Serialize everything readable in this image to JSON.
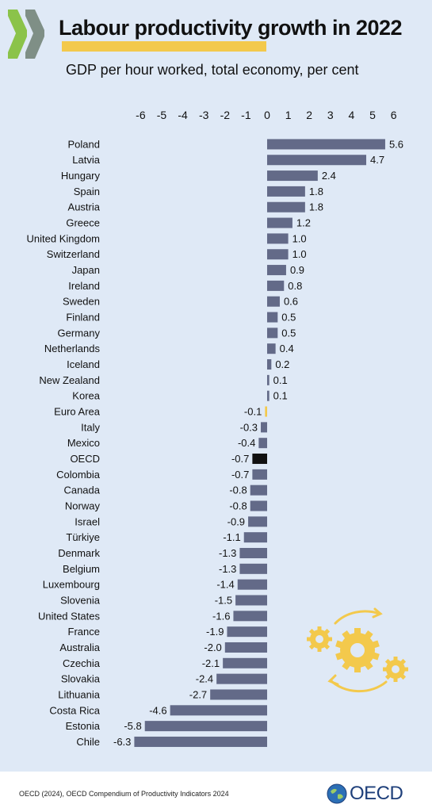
{
  "header": {
    "title": "Labour productivity growth in 2022",
    "subtitle": "GDP per hour worked, total economy, per cent"
  },
  "chart_data": {
    "type": "bar",
    "orientation": "horizontal",
    "title": "Labour productivity growth in 2022",
    "subtitle": "GDP per hour worked, total economy, per cent",
    "xlim": [
      -6,
      6
    ],
    "xticks": [
      -6,
      -5,
      -4,
      -3,
      -2,
      -1,
      0,
      1,
      2,
      3,
      4,
      5,
      6
    ],
    "axis_position": "top",
    "grid": false,
    "legend": "none",
    "categories": [
      "Poland",
      "Latvia",
      "Hungary",
      "Spain",
      "Austria",
      "Greece",
      "United Kingdom",
      "Switzerland",
      "Japan",
      "Ireland",
      "Sweden",
      "Finland",
      "Germany",
      "Netherlands",
      "Iceland",
      "New Zealand",
      "Korea",
      "Euro Area",
      "Italy",
      "Mexico",
      "OECD",
      "Colombia",
      "Canada",
      "Norway",
      "Israel",
      "Türkiye",
      "Denmark",
      "Belgium",
      "Luxembourg",
      "Slovenia",
      "United States",
      "France",
      "Australia",
      "Czechia",
      "Slovakia",
      "Lithuania",
      "Costa Rica",
      "Estonia",
      "Chile"
    ],
    "values": [
      5.6,
      4.7,
      2.4,
      1.8,
      1.8,
      1.2,
      1.0,
      1.0,
      0.9,
      0.8,
      0.6,
      0.5,
      0.5,
      0.4,
      0.2,
      0.1,
      0.1,
      -0.1,
      -0.3,
      -0.4,
      -0.7,
      -0.7,
      -0.8,
      -0.8,
      -0.9,
      -1.1,
      -1.3,
      -1.3,
      -1.4,
      -1.5,
      -1.6,
      -1.9,
      -2.0,
      -2.1,
      -2.4,
      -2.7,
      -4.6,
      -5.8,
      -6.3
    ],
    "value_labels": [
      "5.6",
      "4.7",
      "2.4",
      "1.8",
      "1.8",
      "1.2",
      "1.0",
      "1.0",
      "0.9",
      "0.8",
      "0.6",
      "0.5",
      "0.5",
      "0.4",
      "0.2",
      "0.1",
      "0.1",
      "-0.1",
      "-0.3",
      "-0.4",
      "-0.7",
      "-0.7",
      "-0.8",
      "-0.8",
      "-0.9",
      "-1.1",
      "-1.3",
      "-1.3",
      "-1.4",
      "-1.5",
      "-1.6",
      "-1.9",
      "-2.0",
      "-2.1",
      "-2.4",
      "-2.7",
      "-4.6",
      "-5.8",
      "-6.3"
    ],
    "colors": {
      "default": "#636a88",
      "Euro Area": "#f3c94c",
      "OECD": "#111111"
    }
  },
  "footer": {
    "source": "OECD (2024), OECD Compendium of Productivity Indicators 2024",
    "logo_text": "OECD"
  },
  "colors": {
    "background": "#dfe9f6",
    "accent_yellow": "#f3c94c",
    "chevron_green": "#7cb342",
    "oecd_blue": "#1e3f7a"
  },
  "icons": [
    "oecd-chevrons-logo",
    "gears-cycle-icon",
    "oecd-globe-icon"
  ]
}
